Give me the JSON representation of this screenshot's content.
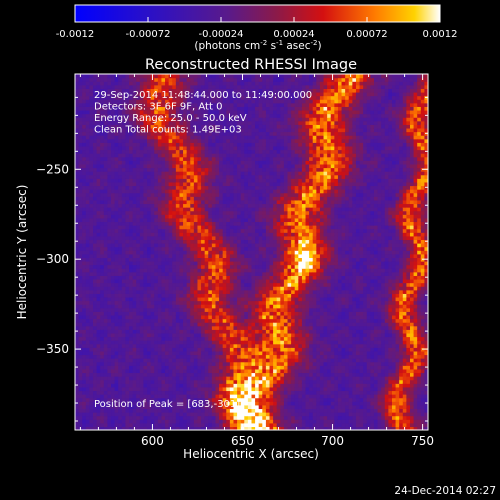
{
  "chart_data": {
    "type": "heatmap",
    "title": "Reconstructed RHESSI Image",
    "xlabel": "Heliocentric X (arcsec)",
    "ylabel": "Heliocentric Y (arcsec)",
    "xlim": [
      557,
      753
    ],
    "ylim": [
      -395,
      -197
    ],
    "x_ticks": [
      600,
      650,
      700,
      750
    ],
    "y_ticks": [
      -250,
      -300,
      -350
    ],
    "colorbar": {
      "range": [
        -0.0012,
        0.0012
      ],
      "ticks": [
        "-0.0012",
        "-0.00072",
        "-0.00024",
        "0.00024",
        "0.00072",
        "0.0012"
      ],
      "label_main": "(photons cm",
      "label_sup1": "-2",
      "label_mid": " s",
      "label_sup2": "-1",
      "label_end": " asec",
      "label_sup3": "-2",
      "label_close": ")"
    },
    "annotations": [
      "29-Sep-2014 11:48:44.000 to 11:49:00.000",
      "Detectors: 3F 6F 9F, Att 0",
      "Energy Range: 25.0 - 50.0 keV",
      "Clean     Total counts: 1.49E+03"
    ],
    "peak_label": "Position of Peak = [683,-301]",
    "peak": [
      683,
      -301
    ],
    "ridges": [
      {
        "x_top": 600,
        "x_bottom": 655,
        "width": 18,
        "peak": 0.001
      },
      {
        "x_top": 705,
        "x_bottom": 655,
        "width": 20,
        "peak": 0.0012
      },
      {
        "x_top": 752,
        "x_bottom": 738,
        "width": 12,
        "peak": 0.0011
      }
    ],
    "grid": false
  },
  "footer": {
    "date": "24-Dec-2014 02:27"
  }
}
